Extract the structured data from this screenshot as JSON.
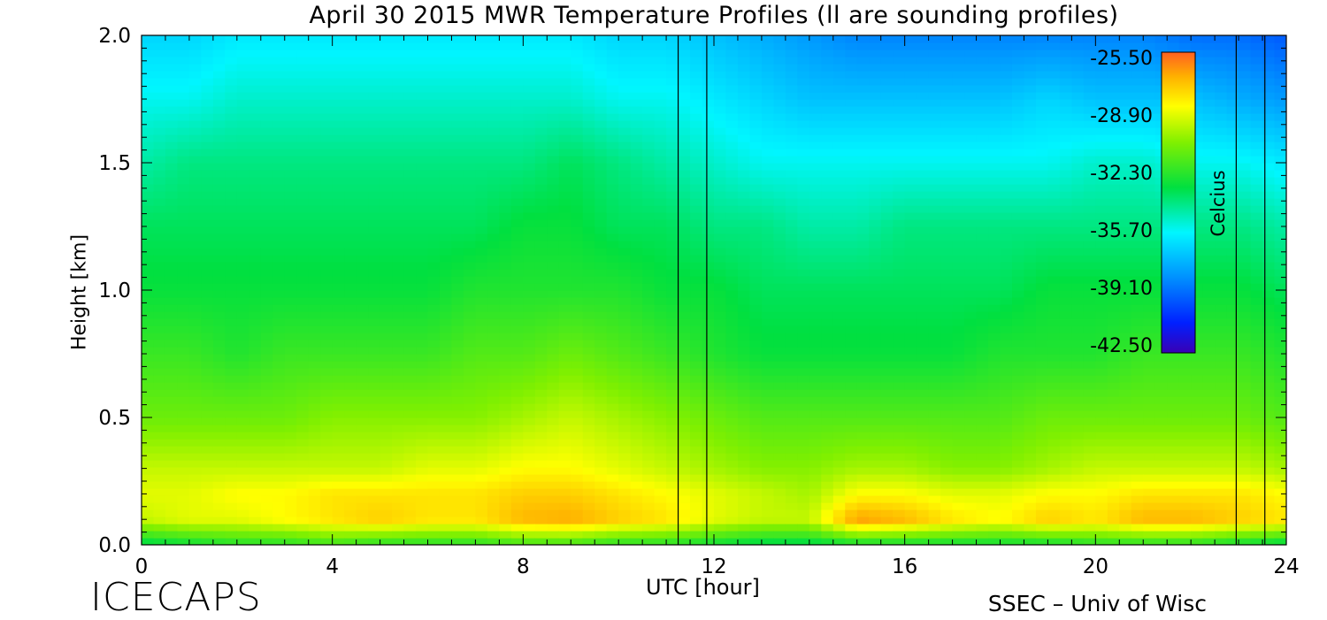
{
  "chart_data": {
    "type": "heatmap",
    "title": "April 30 2015 MWR Temperature Profiles (ll are sounding profiles)",
    "xlabel": "UTC [hour]",
    "ylabel": "Height [km]",
    "xlim": [
      0,
      24
    ],
    "ylim": [
      0.0,
      2.0
    ],
    "x_ticks": [
      "0",
      "4",
      "8",
      "12",
      "16",
      "20",
      "24"
    ],
    "y_ticks": [
      "0.0",
      "0.5",
      "1.0",
      "1.5",
      "2.0"
    ],
    "colorbar": {
      "label": "Celcius",
      "ticks": [
        "-25.50",
        "-28.90",
        "-32.30",
        "-35.70",
        "-39.10",
        "-42.50"
      ],
      "min": -42.5,
      "max": -25.5,
      "placement": "top-right"
    },
    "sounding_times": [
      11.25,
      11.85,
      22.95,
      23.55
    ],
    "time_hours": [
      0,
      1,
      2,
      3,
      4,
      5,
      6,
      7,
      8,
      9,
      10,
      11,
      12,
      13,
      14,
      15,
      16,
      17,
      18,
      19,
      20,
      21,
      22,
      23,
      24
    ],
    "height_km": [
      0.0,
      0.1,
      0.2,
      0.3,
      0.5,
      0.75,
      1.0,
      1.25,
      1.5,
      1.75,
      2.0
    ],
    "temperature_c": [
      [
        -33.5,
        -33.0,
        -32.5,
        -32.5,
        -32.0,
        -32.5,
        -32.5,
        -32.5,
        -32.0,
        -32.0,
        -32.5,
        -32.5,
        -33.0,
        -33.5,
        -33.5,
        -33.0,
        -33.0,
        -33.0,
        -33.0,
        -33.0,
        -32.5,
        -32.5,
        -32.5,
        -33.0,
        -33.5
      ],
      [
        -29.5,
        -29.0,
        -29.0,
        -28.5,
        -28.0,
        -27.5,
        -28.0,
        -28.0,
        -27.0,
        -26.8,
        -27.5,
        -28.0,
        -29.0,
        -29.5,
        -29.5,
        -26.5,
        -27.0,
        -28.0,
        -28.5,
        -27.5,
        -28.0,
        -27.0,
        -27.0,
        -27.5,
        -28.0
      ],
      [
        -29.0,
        -29.0,
        -28.5,
        -28.5,
        -28.0,
        -28.0,
        -28.0,
        -28.0,
        -27.5,
        -27.5,
        -28.0,
        -28.5,
        -29.0,
        -29.5,
        -30.0,
        -28.5,
        -28.5,
        -29.0,
        -29.0,
        -28.5,
        -28.5,
        -28.0,
        -28.0,
        -28.0,
        -28.5
      ],
      [
        -29.5,
        -29.5,
        -29.5,
        -29.5,
        -29.5,
        -29.5,
        -29.0,
        -29.0,
        -28.5,
        -28.5,
        -29.0,
        -29.5,
        -30.0,
        -30.5,
        -30.5,
        -30.0,
        -30.0,
        -30.5,
        -30.5,
        -30.0,
        -29.5,
        -29.5,
        -29.5,
        -29.5,
        -30.0
      ],
      [
        -31.0,
        -31.0,
        -31.0,
        -31.0,
        -30.5,
        -30.5,
        -30.5,
        -30.5,
        -30.0,
        -29.5,
        -30.0,
        -30.5,
        -31.0,
        -31.5,
        -31.5,
        -31.5,
        -31.5,
        -31.5,
        -31.5,
        -31.0,
        -31.0,
        -31.0,
        -31.0,
        -31.0,
        -31.5
      ],
      [
        -32.0,
        -32.0,
        -32.5,
        -32.0,
        -32.0,
        -32.0,
        -32.0,
        -31.5,
        -31.5,
        -31.0,
        -31.5,
        -32.0,
        -32.5,
        -33.0,
        -33.0,
        -33.0,
        -33.0,
        -33.0,
        -32.5,
        -32.5,
        -32.5,
        -32.0,
        -32.0,
        -32.0,
        -32.5
      ],
      [
        -33.0,
        -33.0,
        -33.0,
        -33.0,
        -33.0,
        -33.0,
        -33.0,
        -32.5,
        -32.5,
        -32.5,
        -32.5,
        -33.0,
        -33.0,
        -33.5,
        -33.5,
        -33.5,
        -33.5,
        -33.5,
        -33.5,
        -33.0,
        -33.0,
        -33.0,
        -33.0,
        -33.0,
        -33.5
      ],
      [
        -33.5,
        -33.5,
        -33.5,
        -33.5,
        -33.5,
        -33.5,
        -33.5,
        -33.5,
        -33.0,
        -33.0,
        -33.5,
        -33.5,
        -34.0,
        -34.0,
        -34.5,
        -34.5,
        -34.0,
        -34.0,
        -34.0,
        -34.0,
        -34.0,
        -34.0,
        -34.0,
        -34.0,
        -34.5
      ],
      [
        -34.5,
        -34.0,
        -34.0,
        -34.0,
        -34.0,
        -34.0,
        -34.0,
        -34.0,
        -34.0,
        -33.5,
        -34.0,
        -34.5,
        -35.0,
        -35.5,
        -35.5,
        -35.5,
        -35.5,
        -35.5,
        -35.5,
        -35.5,
        -35.0,
        -35.0,
        -35.5,
        -35.5,
        -36.0
      ],
      [
        -35.5,
        -35.5,
        -35.0,
        -35.0,
        -35.0,
        -35.0,
        -35.0,
        -35.0,
        -35.0,
        -35.0,
        -35.5,
        -35.5,
        -36.0,
        -36.5,
        -37.0,
        -37.0,
        -37.0,
        -37.0,
        -37.0,
        -36.5,
        -37.0,
        -37.0,
        -37.0,
        -37.5,
        -38.0
      ],
      [
        -36.5,
        -36.5,
        -36.0,
        -36.0,
        -36.0,
        -36.0,
        -36.0,
        -36.0,
        -36.0,
        -36.0,
        -36.5,
        -36.5,
        -37.0,
        -37.5,
        -38.0,
        -38.5,
        -38.5,
        -38.5,
        -38.5,
        -38.5,
        -38.5,
        -38.5,
        -39.0,
        -39.0,
        -39.5
      ]
    ]
  }
}
